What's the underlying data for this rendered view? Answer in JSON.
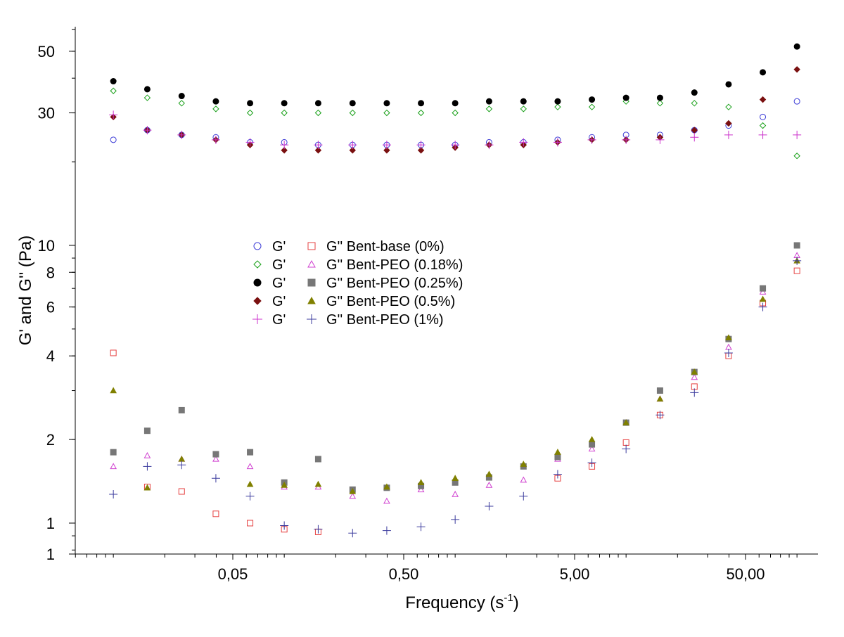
{
  "chart_data": {
    "type": "scatter",
    "title": "",
    "xlabel": "Frequency (s",
    "xlabel_sup": "-1",
    "xlabel_close": ")",
    "ylabel": "G' and G'' (Pa)",
    "x_scale": "log",
    "y_scale": "log",
    "xlim": [
      0.005,
      120
    ],
    "ylim": [
      0.78,
      80
    ],
    "grid": false,
    "legend_position": "center-left",
    "x_ticks": [
      {
        "value": 0.05,
        "label": "0,05"
      },
      {
        "value": 0.5,
        "label": "0,50"
      },
      {
        "value": 5,
        "label": "5,00"
      },
      {
        "value": 50,
        "label": "50,00"
      }
    ],
    "y_ticks": [
      {
        "value": 0.78,
        "label": "1"
      },
      {
        "value": 1,
        "label": "1"
      },
      {
        "value": 2,
        "label": "2"
      },
      {
        "value": 4,
        "label": "4"
      },
      {
        "value": 6,
        "label": "6"
      },
      {
        "value": 8,
        "label": "8"
      },
      {
        "value": 10,
        "label": "10"
      },
      {
        "value": 30,
        "label": "30"
      },
      {
        "value": 50,
        "label": "50"
      }
    ],
    "legend_entries": [
      {
        "left": "G'",
        "right": "G'' Bent-base (0%)"
      },
      {
        "left": "G'",
        "right": "G'' Bent-PEO (0.18%)"
      },
      {
        "left": "G'",
        "right": "G'' Bent-PEO (0.25%)"
      },
      {
        "left": "G'",
        "right": "G'' Bent-PEO (0.5%)"
      },
      {
        "left": "G'",
        "right": "G'' Bent-PEO (1%)"
      }
    ],
    "x": [
      0.01,
      0.0158,
      0.0251,
      0.0398,
      0.0631,
      0.1,
      0.158,
      0.251,
      0.398,
      0.631,
      1.0,
      1.58,
      2.51,
      3.98,
      6.31,
      10.0,
      15.8,
      25.1,
      39.8,
      63.1,
      100.0
    ],
    "series": [
      {
        "group": "G'",
        "ref": "Bent-base (0%)",
        "marker": "circle-open",
        "color": "#3b3bd6",
        "values": [
          24,
          26,
          25,
          24.5,
          23.5,
          23.5,
          23,
          23,
          23,
          23,
          23,
          23.5,
          23.5,
          24,
          24.5,
          25,
          25,
          26,
          27,
          29,
          33
        ]
      },
      {
        "group": "G'",
        "ref": "Bent-PEO (0.18%)",
        "marker": "diamond-open",
        "color": "#19a019",
        "values": [
          36,
          34,
          32.5,
          31,
          30,
          30,
          30,
          30,
          30,
          30,
          30,
          31,
          31,
          31.5,
          31.5,
          33,
          32.5,
          32.5,
          31.5,
          27,
          21
        ]
      },
      {
        "group": "G'",
        "ref": "Bent-PEO (0.25%)",
        "marker": "circle-filled",
        "color": "#000000",
        "values": [
          39,
          36.5,
          34.5,
          33,
          32.5,
          32.5,
          32.5,
          32.5,
          32.5,
          32.5,
          32.5,
          33,
          33,
          33,
          33.5,
          34,
          34,
          35.5,
          38,
          42,
          52
        ]
      },
      {
        "group": "G'",
        "ref": "Bent-PEO (0.5%)",
        "marker": "diamond-filled",
        "color": "#7a1010",
        "values": [
          29,
          26,
          25,
          24,
          23,
          22,
          22,
          22,
          22,
          22,
          22.5,
          23,
          23,
          23.5,
          24,
          24,
          24.5,
          26,
          27.5,
          33.5,
          43
        ]
      },
      {
        "group": "G'",
        "ref": "Bent-PEO (1%)",
        "marker": "plus",
        "color": "#cc33cc",
        "values": [
          29.5,
          26,
          25,
          24,
          23.5,
          23,
          23,
          23,
          23,
          23,
          23,
          23,
          23.5,
          23.5,
          24,
          24,
          24,
          24.5,
          25,
          25,
          25
        ]
      },
      {
        "group": "G''",
        "name": "G'' Bent-base (0%)",
        "marker": "square-open",
        "color": "#e64040",
        "values": [
          4.1,
          1.35,
          1.3,
          1.08,
          1.0,
          0.95,
          0.93,
          null,
          null,
          null,
          null,
          null,
          null,
          1.45,
          1.6,
          1.95,
          2.45,
          3.1,
          4.0,
          6.2,
          8.1
        ]
      },
      {
        "group": "G''",
        "name": "G'' Bent-PEO (0.18%)",
        "marker": "triangle-open",
        "color": "#d040d0",
        "values": [
          1.6,
          1.75,
          1.7,
          1.7,
          1.6,
          1.35,
          1.35,
          1.25,
          1.2,
          1.32,
          1.27,
          1.37,
          1.43,
          1.7,
          1.85,
          2.3,
          2.8,
          3.35,
          4.3,
          6.8,
          9.2
        ]
      },
      {
        "group": "G''",
        "name": "G'' Bent-PEO (0.25%)",
        "marker": "square-filled",
        "color": "#777777",
        "values": [
          1.8,
          2.15,
          2.55,
          1.77,
          1.8,
          1.4,
          1.7,
          1.32,
          1.34,
          1.36,
          1.4,
          1.46,
          1.6,
          1.73,
          1.92,
          2.3,
          3.0,
          3.5,
          4.6,
          7.0,
          10.0
        ]
      },
      {
        "group": "G''",
        "name": "G'' Bent-PEO (0.5%)",
        "marker": "triangle-filled",
        "color": "#808000",
        "values": [
          3.0,
          1.34,
          1.7,
          null,
          1.38,
          1.37,
          1.38,
          1.3,
          1.35,
          1.4,
          1.45,
          1.5,
          1.63,
          1.8,
          2.0,
          2.3,
          2.8,
          3.5,
          4.65,
          6.4,
          8.8
        ]
      },
      {
        "group": "G''",
        "name": "G'' Bent-PEO (1%)",
        "marker": "plus",
        "color": "#3b3b9e",
        "values": [
          1.27,
          1.6,
          1.62,
          1.45,
          1.25,
          0.98,
          0.95,
          0.92,
          0.94,
          0.97,
          1.03,
          1.15,
          1.25,
          1.5,
          1.65,
          1.85,
          2.45,
          2.95,
          4.1,
          6.0,
          8.8
        ]
      }
    ]
  }
}
